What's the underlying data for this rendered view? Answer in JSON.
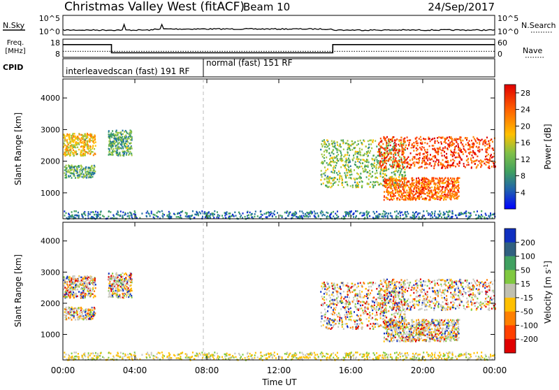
{
  "header": {
    "station": "Christmas Valley West (fitACF)",
    "beam": "Beam 10",
    "date": "24/Sep/2017"
  },
  "top_panels": {
    "nsky_label": "N.Sky",
    "nsearch_label": "N.Search",
    "noise_ticks": [
      "10^5",
      "10^0"
    ],
    "freq_label": "Freq.",
    "freq_unit": "[MHz]",
    "freq_ticks": [
      "18",
      "8"
    ],
    "nave_label": "Nave",
    "nave_ticks": [
      "60",
      "0"
    ],
    "cpid_label": "CPID",
    "cpid_segments": [
      {
        "label": "interleavedscan (fast) 191 RF",
        "start_hour": 0,
        "end_hour": 8
      },
      {
        "label": "normal (fast) 151 RF",
        "start_hour": 8,
        "end_hour": 24
      }
    ]
  },
  "axes": {
    "x_label": "Time UT",
    "x_ticks": [
      "00:00",
      "04:00",
      "08:00",
      "12:00",
      "16:00",
      "20:00",
      "00:00"
    ],
    "y_label": "Slant Range [km]",
    "y_ticks": [
      "4000",
      "3000",
      "2000",
      "1000"
    ],
    "y_range_km": [
      180,
      4600
    ],
    "x_range_hours": [
      0,
      24
    ]
  },
  "colorbars": {
    "power": {
      "label": "Power [dB]",
      "ticks": [
        "28",
        "24",
        "20",
        "16",
        "12",
        "8",
        "4"
      ],
      "colors": [
        "#e00000",
        "#ff4000",
        "#ff8000",
        "#ffc000",
        "#a0c840",
        "#40a060",
        "#2070a0",
        "#1030d0",
        "#0000ff"
      ]
    },
    "velocity": {
      "label": "Velocity [m s",
      "label_sup": "-1",
      "label_end": "]",
      "ticks": [
        "200",
        "100",
        "50",
        "15",
        "-15",
        "-50",
        "-100",
        "-200"
      ],
      "colors": [
        "#1030c0",
        "#306080",
        "#40a060",
        "#80c840",
        "#c0c0b0",
        "#ffc000",
        "#ff8000",
        "#ff4000",
        "#e00000"
      ]
    }
  },
  "chart_data": {
    "type": "heatmap",
    "title": "Christmas Valley West (fitACF) Beam 10 24/Sep/2017",
    "xlabel": "Time UT",
    "ylabel": "Slant Range [km]",
    "xlim_hours": [
      0,
      24
    ],
    "ylim_km": [
      180,
      4600
    ],
    "frequency_mhz": [
      {
        "start_hour": 0,
        "end_hour": 2.7,
        "value": 15
      },
      {
        "start_hour": 2.7,
        "end_hour": 15,
        "value": 10.5
      },
      {
        "start_hour": 15,
        "end_hour": 24,
        "value": 15
      }
    ],
    "nave": [
      {
        "start_hour": 0,
        "end_hour": 24,
        "value": 20
      }
    ],
    "power_regions": [
      {
        "t0": 0,
        "t1": 1.8,
        "r0": 2200,
        "r1": 2900,
        "db": 18
      },
      {
        "t0": 0,
        "t1": 1.8,
        "r0": 1500,
        "r1": 1900,
        "db": 12
      },
      {
        "t0": 2.5,
        "t1": 3.8,
        "r0": 2200,
        "r1": 3000,
        "db": 12
      },
      {
        "t0": 0,
        "t1": 24,
        "r0": 200,
        "r1": 450,
        "db": 8
      },
      {
        "t0": 14.3,
        "t1": 19,
        "r0": 1200,
        "r1": 2700,
        "db": 14
      },
      {
        "t0": 17.5,
        "t1": 24,
        "r0": 1800,
        "r1": 2800,
        "db": 26
      },
      {
        "t0": 17.8,
        "t1": 22,
        "r0": 800,
        "r1": 1500,
        "db": 24
      }
    ]
  }
}
